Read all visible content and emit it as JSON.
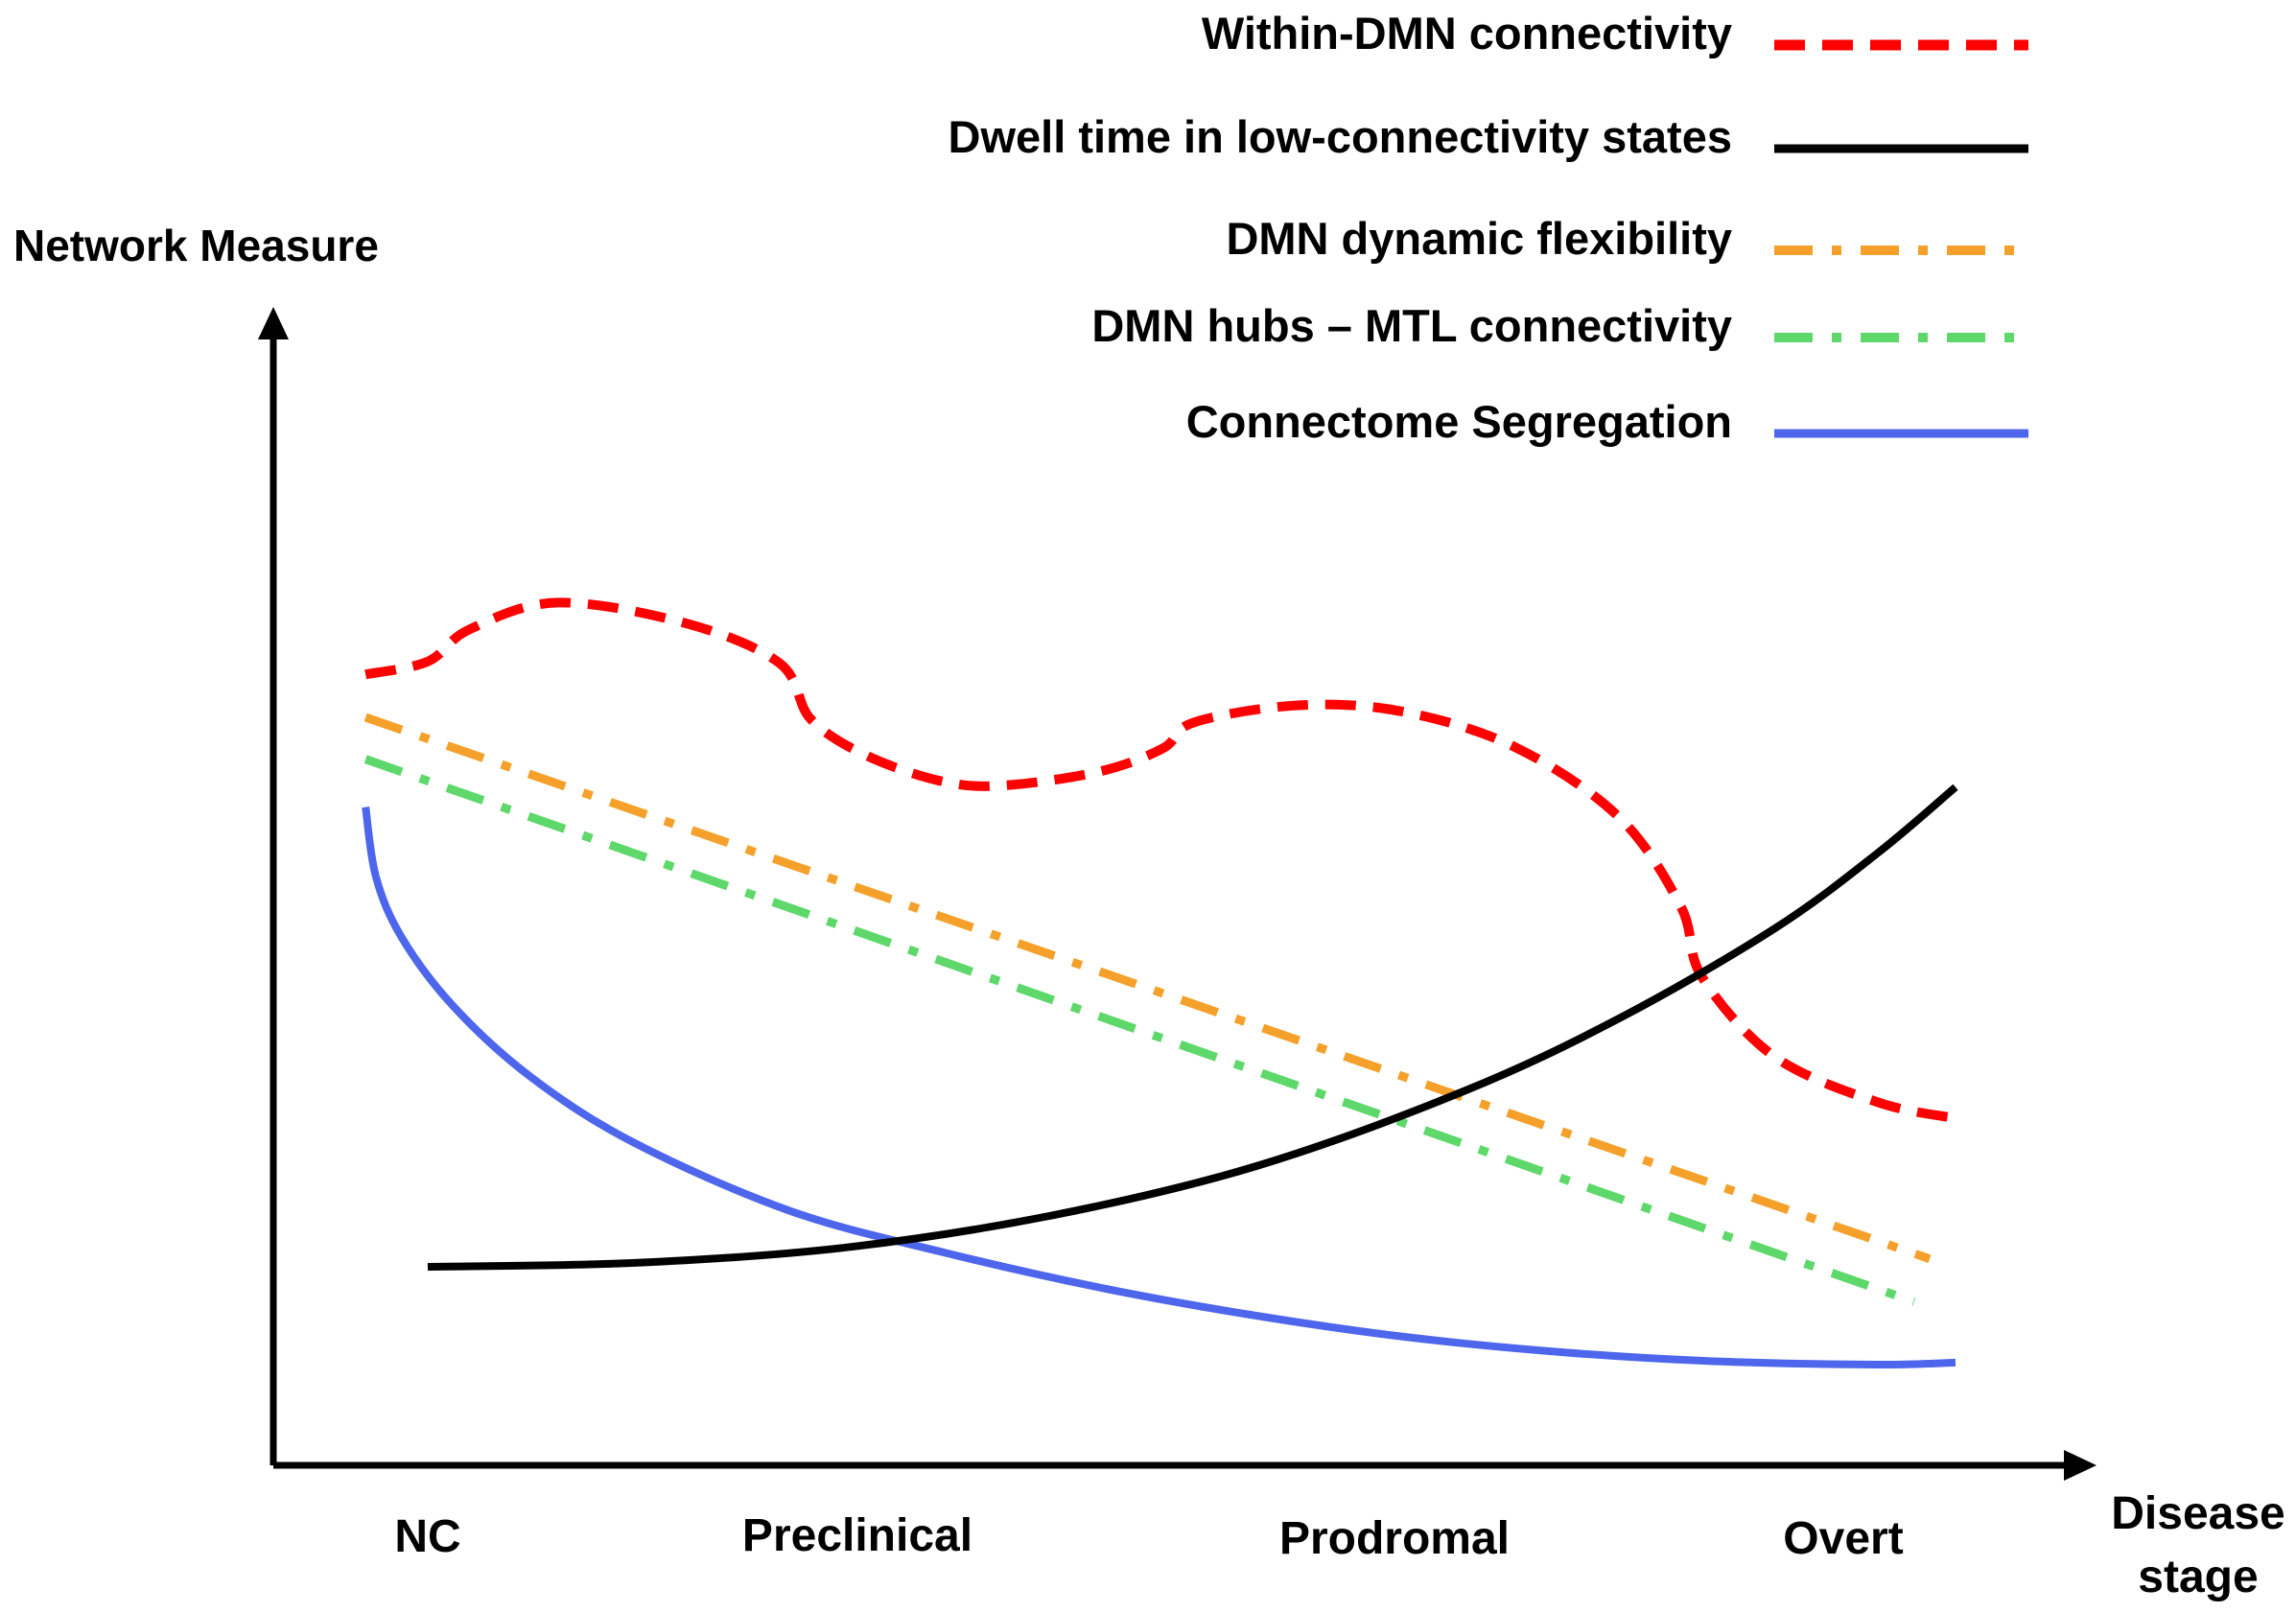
{
  "chart_data": {
    "type": "line",
    "title": "",
    "ylabel": "Network Measure",
    "xlabel_lines": [
      "Disease",
      "stage"
    ],
    "xlim": [
      -0.15,
      3.45
    ],
    "ylim": [
      0,
      100
    ],
    "grid": false,
    "legend_position": "top-right",
    "categories": [
      "NC",
      "Preclinical",
      "Prodromal",
      "Overt"
    ],
    "series": [
      {
        "name": "Within-DMN connectivity",
        "color": "#ff0000",
        "style": "dashed",
        "points": [
          [
            -0.12,
            79.3
          ],
          [
            0.0,
            80.6
          ],
          [
            0.08,
            83.8
          ],
          [
            0.25,
            86.5
          ],
          [
            0.5,
            84.4
          ],
          [
            0.68,
            80.4
          ],
          [
            0.74,
            74.8
          ],
          [
            0.85,
            71.1
          ],
          [
            1.0,
            68.5
          ],
          [
            1.12,
            68.2
          ],
          [
            1.3,
            69.6
          ],
          [
            1.42,
            71.9
          ],
          [
            1.48,
            74.5
          ],
          [
            1.68,
            76.2
          ],
          [
            1.88,
            75.6
          ],
          [
            2.1,
            72.0
          ],
          [
            2.3,
            65.0
          ],
          [
            2.42,
            56.0
          ],
          [
            2.46,
            49.0
          ],
          [
            2.6,
            41.0
          ],
          [
            2.8,
            36.4
          ],
          [
            2.95,
            34.8
          ]
        ]
      },
      {
        "name": "Dwell time in low-connectivity states",
        "color": "#000000",
        "style": "solid",
        "points": [
          [
            0.0,
            19.9
          ],
          [
            0.4,
            20.3
          ],
          [
            0.8,
            21.8
          ],
          [
            1.2,
            25.0
          ],
          [
            1.6,
            30.0
          ],
          [
            2.0,
            37.5
          ],
          [
            2.3,
            44.8
          ],
          [
            2.6,
            53.8
          ],
          [
            2.8,
            61.4
          ],
          [
            2.95,
            68.0
          ]
        ]
      },
      {
        "name": "DMN dynamic flexibility",
        "color": "#f5a02a",
        "style": "dashdot",
        "points": [
          [
            -0.12,
            75.0
          ],
          [
            2.9,
            20.7
          ]
        ]
      },
      {
        "name": "DMN hubs – MTL connectivity",
        "color": "#5ed86a",
        "style": "dashdot",
        "points": [
          [
            -0.12,
            70.8
          ],
          [
            2.87,
            16.4
          ]
        ]
      },
      {
        "name": "Connectome Segregation",
        "color": "#4d66ec",
        "style": "solid",
        "points": [
          [
            -0.12,
            66.0
          ],
          [
            -0.1,
            59.0
          ],
          [
            -0.05,
            52.9
          ],
          [
            0.05,
            46.0
          ],
          [
            0.2,
            38.9
          ],
          [
            0.4,
            32.3
          ],
          [
            0.7,
            25.5
          ],
          [
            1.0,
            21.3
          ],
          [
            1.3,
            17.8
          ],
          [
            1.6,
            15.0
          ],
          [
            1.9,
            12.8
          ],
          [
            2.2,
            11.3
          ],
          [
            2.5,
            10.4
          ],
          [
            2.8,
            10.1
          ],
          [
            2.95,
            10.3
          ]
        ]
      }
    ]
  }
}
